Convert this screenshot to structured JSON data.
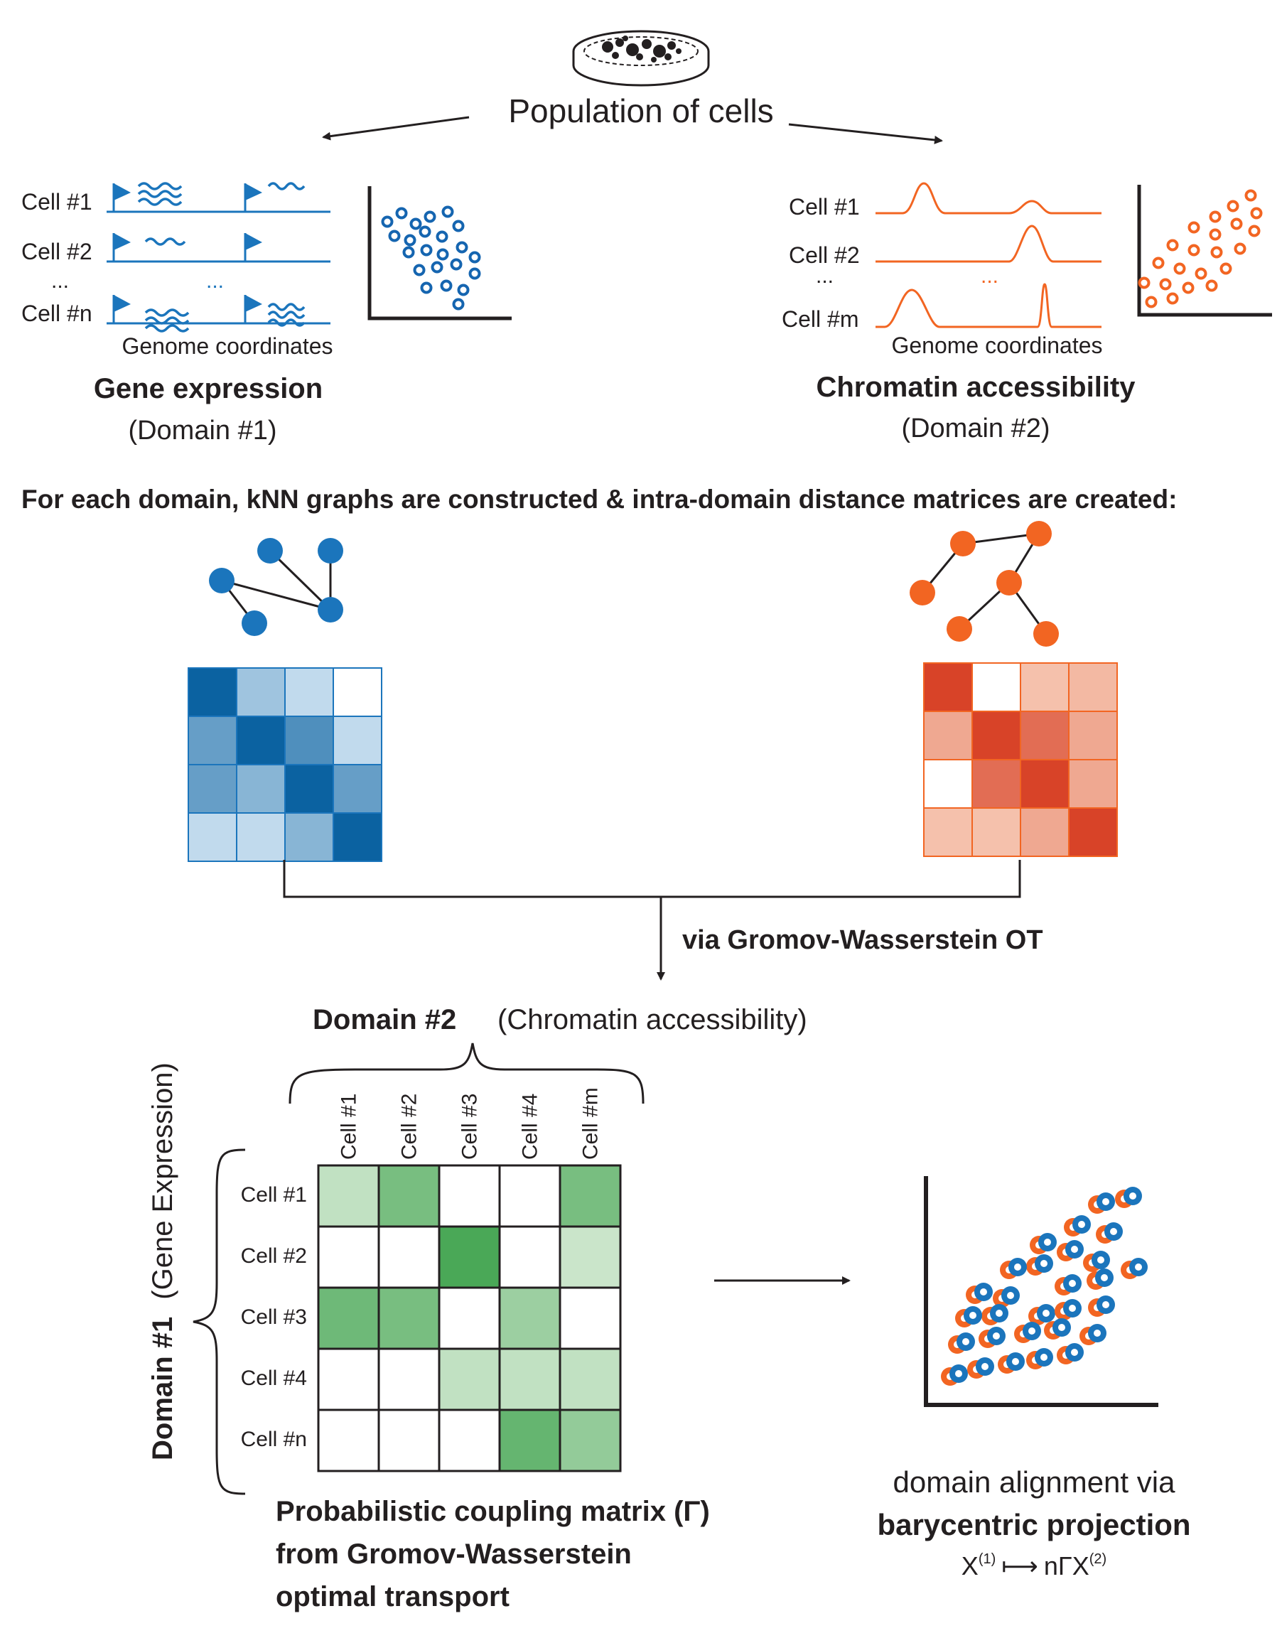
{
  "top": {
    "population_label": "Population of cells"
  },
  "domain1": {
    "cell_labels": [
      "Cell #1",
      "Cell #2",
      "...",
      "Cell #n"
    ],
    "ellipsis_mid": "...",
    "axis_caption": "Genome coordinates",
    "title": "Gene expression",
    "subtitle": "(Domain #1)",
    "color": "#1b75bc",
    "dot_color": "#1565b0"
  },
  "domain2": {
    "cell_labels": [
      "Cell #1",
      "Cell #2",
      "...",
      "Cell #m"
    ],
    "ellipsis_mid": "...",
    "axis_caption": "Genome coordinates",
    "title": "Chromatin accessibility",
    "subtitle": "(Domain #2)",
    "color": "#f26522"
  },
  "knn_heading": "For each domain, kNN graphs are constructed & intra-domain distance matrices are created:",
  "gw_label": "via Gromov-Wasserstein OT",
  "coupling": {
    "col_header_bold": "Domain #2",
    "col_header_rest": "(Chromatin accessibility)",
    "row_header_bold": "Domain #1",
    "row_header_rest": "(Gene Expression)",
    "col_labels": [
      "Cell #1",
      "Cell #2",
      "Cell #3",
      "Cell #4",
      "Cell #m"
    ],
    "row_labels": [
      "Cell #1",
      "Cell #2",
      "Cell #3",
      "Cell #4",
      "Cell #n"
    ],
    "cells": [
      [
        0.2,
        0.6,
        0,
        0,
        0.6
      ],
      [
        0,
        0,
        0.85,
        0,
        0.15
      ],
      [
        0.65,
        0.6,
        0,
        0.4,
        0
      ],
      [
        0,
        0,
        0.2,
        0.2,
        0.2
      ],
      [
        0,
        0,
        0,
        0.7,
        0.45
      ]
    ],
    "caption_lines": [
      "Probabilistic coupling matrix (Γ)",
      "from Gromov-Wasserstein",
      "optimal transport"
    ]
  },
  "distance_matrices": {
    "blue": [
      [
        0.95,
        0.3,
        0.15,
        0
      ],
      [
        0.55,
        0.95,
        0.65,
        0.15
      ],
      [
        0.55,
        0.4,
        0.95,
        0.55
      ],
      [
        0.15,
        0.15,
        0.4,
        0.95
      ]
    ],
    "orange": [
      [
        0.95,
        0,
        0.2,
        0.25
      ],
      [
        0.35,
        0.95,
        0.7,
        0.35
      ],
      [
        0,
        0.7,
        0.95,
        0.35
      ],
      [
        0.2,
        0.2,
        0.35,
        0.95
      ]
    ]
  },
  "alignment": {
    "line1": "domain alignment via",
    "line2": "barycentric projection",
    "formula_x": "X",
    "formula_sup1": "(1)",
    "formula_map": "⟼",
    "formula_rhs": "nΓX",
    "formula_sup2": "(2)"
  }
}
